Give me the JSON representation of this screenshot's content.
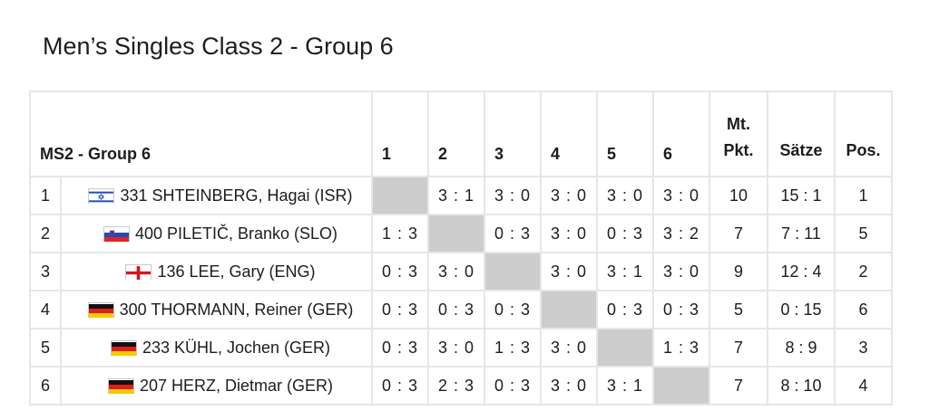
{
  "title": "Men’s Singles Class 2 - Group 6",
  "table": {
    "group_label": "MS2 - Group 6",
    "match_headers": [
      "1",
      "2",
      "3",
      "4",
      "5",
      "6"
    ],
    "pts_header_line1": "Mt.",
    "pts_header_line2": "Pkt.",
    "sets_header": "Sätze",
    "pos_header": "Pos.",
    "rows": [
      {
        "rank": "1",
        "flag": "ISR",
        "player": "331 SHTEINBERG, Hagai (ISR)",
        "results": [
          "",
          "3 : 1",
          "3 : 0",
          "3 : 0",
          "3 : 0",
          "3 : 0"
        ],
        "points": "10",
        "sets": "15 : 1",
        "position": "1"
      },
      {
        "rank": "2",
        "flag": "SLO",
        "player": "400 PILETIČ, Branko (SLO)",
        "results": [
          "1 : 3",
          "",
          "0 : 3",
          "3 : 0",
          "0 : 3",
          "3 : 2"
        ],
        "points": "7",
        "sets": "7 : 11",
        "position": "5"
      },
      {
        "rank": "3",
        "flag": "ENG",
        "player": "136 LEE, Gary (ENG)",
        "results": [
          "0 : 3",
          "3 : 0",
          "",
          "3 : 0",
          "3 : 1",
          "3 : 0"
        ],
        "points": "9",
        "sets": "12 : 4",
        "position": "2"
      },
      {
        "rank": "4",
        "flag": "GER",
        "player": "300 THORMANN, Reiner (GER)",
        "results": [
          "0 : 3",
          "0 : 3",
          "0 : 3",
          "",
          "0 : 3",
          "0 : 3"
        ],
        "points": "5",
        "sets": "0 : 15",
        "position": "6"
      },
      {
        "rank": "5",
        "flag": "GER",
        "player": "233 KÜHL, Jochen (GER)",
        "results": [
          "0 : 3",
          "3 : 0",
          "1 : 3",
          "3 : 0",
          "",
          "1 : 3"
        ],
        "points": "7",
        "sets": "8 : 9",
        "position": "3"
      },
      {
        "rank": "6",
        "flag": "GER",
        "player": "207 HERZ, Dietmar (GER)",
        "results": [
          "0 : 3",
          "2 : 3",
          "0 : 3",
          "3 : 0",
          "3 : 1",
          ""
        ],
        "points": "7",
        "sets": "8 : 10",
        "position": "4"
      }
    ]
  },
  "colors": {
    "blank_cell": "#cdcdcd",
    "border": "#e6e6ea"
  }
}
